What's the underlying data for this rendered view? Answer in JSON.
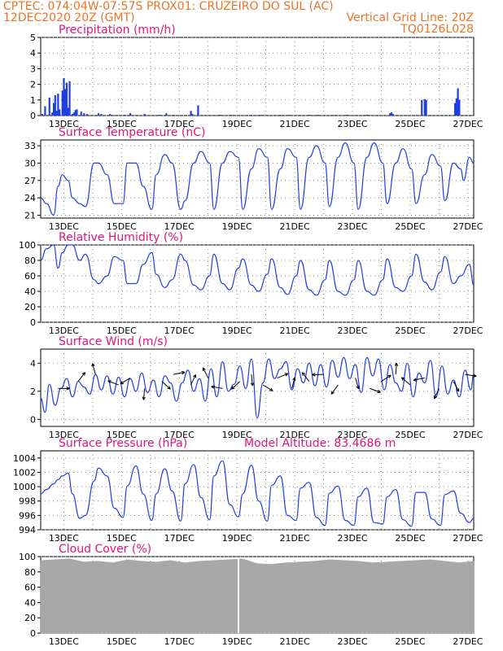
{
  "header": {
    "line1_left": "CPTEC:   074:04W-07:57S   PROX01: CRUZEIRO DO SUL (AC)",
    "line2_left": "12DEC2020 20Z (GMT)",
    "line2_right": "Vertical Grid Line: 20Z",
    "line3_right": "TQ0126L028"
  },
  "x_axis_labels": [
    "13DEC",
    "15DEC",
    "17DEC",
    "19DEC",
    "21DEC",
    "23DEC",
    "25DEC",
    "27DEC"
  ],
  "colors": {
    "header": "#e8742a",
    "title": "#e0147a",
    "series": "#1f3fe0",
    "cloud": "#a8a8a8",
    "arrow": "#000000"
  },
  "chart_data": [
    {
      "id": "precip",
      "type": "bar",
      "title": "Precipitation (mm/h)",
      "ylim": [
        0,
        5
      ],
      "yticks": [
        0,
        1,
        2,
        3,
        4,
        5
      ],
      "x": [
        0.05,
        0.15,
        0.3,
        0.4,
        0.45,
        0.5,
        0.55,
        0.6,
        0.65,
        0.75,
        0.8,
        0.85,
        0.9,
        0.95,
        1.0,
        1.1,
        1.15,
        1.2,
        1.25,
        1.4,
        1.5,
        1.6,
        2.0,
        2.1,
        2.4,
        2.9,
        3.1,
        3.6,
        4.1,
        4.35,
        4.6,
        5.2,
        5.25,
        5.45,
        6.2,
        6.6,
        7.3,
        7.6,
        8.3,
        8.6,
        9.3,
        9.6,
        10.2,
        10.6,
        11.3,
        12.1,
        12.15,
        12.2,
        13.2,
        13.3,
        13.35,
        14.35,
        14.4,
        14.45,
        14.5
      ],
      "values": [
        0.1,
        0.6,
        1.15,
        0.2,
        0.8,
        1.3,
        0.3,
        1.4,
        0.4,
        1.6,
        2.4,
        1.7,
        2.1,
        0.5,
        2.2,
        0.1,
        0.2,
        0.35,
        0.4,
        0.25,
        0.15,
        0.1,
        0.15,
        0.1,
        0.1,
        0.05,
        0.15,
        0.1,
        0.05,
        0.15,
        0.05,
        0.3,
        0.1,
        0.65,
        0.05,
        0.05,
        0.05,
        0.05,
        0.05,
        0.05,
        0.05,
        0.05,
        0.05,
        0.05,
        0.05,
        0.15,
        0.2,
        0.1,
        1.0,
        1.05,
        1.0,
        0.8,
        1.1,
        1.75,
        1.0
      ]
    },
    {
      "id": "temp",
      "type": "line",
      "title": "Surface Temperature (nC)",
      "ylim": [
        20.5,
        34
      ],
      "yticks": [
        21,
        24,
        27,
        30,
        33
      ],
      "x": [
        0,
        0.2,
        0.45,
        0.6,
        0.75,
        0.95,
        1.1,
        1.35,
        1.55,
        1.85,
        2.0,
        2.3,
        2.55,
        2.85,
        3.0,
        3.3,
        3.55,
        3.85,
        4.0,
        4.3,
        4.55,
        4.85,
        5.0,
        5.3,
        5.55,
        5.85,
        6.0,
        6.3,
        6.55,
        6.85,
        7.0,
        7.3,
        7.55,
        7.85,
        8.0,
        8.3,
        8.55,
        8.85,
        9.0,
        9.3,
        9.55,
        9.85,
        10.0,
        10.3,
        10.55,
        10.85,
        11.0,
        11.3,
        11.55,
        11.85,
        12.0,
        12.3,
        12.55,
        12.85,
        13.0,
        13.3,
        13.55,
        13.85,
        14.0,
        14.3,
        14.55,
        14.65,
        14.85,
        15.0
      ],
      "values": [
        24,
        23,
        21,
        26,
        28,
        27,
        24,
        23,
        22.5,
        30,
        30,
        28,
        23,
        23,
        30,
        30,
        26,
        22,
        28,
        31.5,
        30,
        22,
        23.5,
        30,
        32,
        30,
        22,
        30,
        32,
        31,
        22,
        29,
        32.5,
        31,
        22,
        29,
        32.5,
        31,
        22,
        31,
        33,
        30,
        22.5,
        31,
        33.5,
        30,
        22,
        31,
        33.5,
        30,
        23,
        30,
        32.5,
        29,
        23,
        28,
        31.5,
        29.5,
        23.5,
        30,
        29,
        27,
        31,
        30
      ]
    },
    {
      "id": "rh",
      "type": "line",
      "title": "Relative Humidity (%)",
      "ylim": [
        0,
        100
      ],
      "yticks": [
        0,
        20,
        40,
        60,
        80,
        100
      ],
      "x": [
        0,
        0.2,
        0.45,
        0.6,
        0.75,
        0.95,
        1.1,
        1.35,
        1.55,
        1.85,
        2.0,
        2.3,
        2.55,
        2.85,
        3.0,
        3.3,
        3.55,
        3.85,
        4.0,
        4.3,
        4.55,
        4.85,
        5.0,
        5.3,
        5.55,
        5.85,
        6.0,
        6.3,
        6.55,
        6.85,
        7.0,
        7.3,
        7.55,
        7.85,
        8.0,
        8.3,
        8.55,
        8.85,
        9.0,
        9.3,
        9.55,
        9.85,
        10.0,
        10.3,
        10.55,
        10.85,
        11.0,
        11.3,
        11.55,
        11.85,
        12.0,
        12.3,
        12.55,
        12.85,
        13.0,
        13.3,
        13.55,
        13.85,
        14.0,
        14.3,
        14.55,
        14.85,
        15.0
      ],
      "values": [
        80,
        95,
        100,
        70,
        90,
        100,
        100,
        80,
        88,
        55,
        50,
        60,
        85,
        80,
        50,
        50,
        75,
        90,
        62,
        45,
        55,
        88,
        80,
        48,
        42,
        60,
        88,
        50,
        42,
        70,
        82,
        48,
        40,
        62,
        82,
        45,
        36,
        60,
        80,
        42,
        35,
        55,
        80,
        40,
        35,
        55,
        80,
        40,
        35,
        55,
        82,
        45,
        40,
        60,
        88,
        52,
        42,
        65,
        85,
        50,
        60,
        75,
        48
      ]
    },
    {
      "id": "wind",
      "type": "line",
      "title": "Surface Wind (m/s)",
      "ylim": [
        -0.5,
        5
      ],
      "yticks": [
        0,
        2,
        4
      ],
      "x": [
        0,
        0.15,
        0.3,
        0.5,
        0.7,
        0.9,
        1.1,
        1.3,
        1.5,
        1.7,
        1.9,
        2.1,
        2.3,
        2.5,
        2.7,
        2.9,
        3.1,
        3.3,
        3.5,
        3.7,
        3.9,
        4.1,
        4.3,
        4.5,
        4.7,
        4.9,
        5.1,
        5.3,
        5.5,
        5.7,
        5.9,
        6.1,
        6.3,
        6.5,
        6.7,
        6.9,
        7.1,
        7.3,
        7.5,
        7.7,
        7.9,
        8.1,
        8.3,
        8.5,
        8.7,
        8.9,
        9.1,
        9.3,
        9.5,
        9.7,
        9.9,
        10.1,
        10.3,
        10.5,
        10.7,
        10.9,
        11.1,
        11.3,
        11.5,
        11.7,
        11.9,
        12.1,
        12.3,
        12.5,
        12.7,
        12.9,
        13.1,
        13.3,
        13.5,
        13.7,
        13.9,
        14.1,
        14.3,
        14.5,
        14.7,
        14.9,
        15.0
      ],
      "values": [
        1.5,
        0.5,
        2.5,
        1.0,
        2.2,
        2.9,
        1.6,
        2.7,
        2.3,
        1.8,
        3.2,
        2.1,
        3.1,
        1.8,
        3.0,
        1.6,
        2.9,
        2.0,
        3.3,
        1.9,
        2.8,
        1.6,
        3.1,
        2.6,
        1.3,
        2.6,
        3.5,
        2.0,
        2.9,
        1.3,
        3.6,
        1.6,
        4.1,
        2.0,
        2.5,
        3.8,
        2.2,
        4.3,
        0.1,
        2.6,
        4.3,
        2.9,
        3.6,
        4.1,
        2.1,
        3.6,
        2.6,
        4.0,
        2.4,
        3.9,
        2.3,
        4.2,
        3.0,
        4.4,
        2.9,
        3.9,
        1.9,
        4.4,
        3.1,
        4.3,
        2.1,
        3.9,
        2.6,
        2.0,
        4.0,
        1.6,
        3.3,
        2.6,
        4.2,
        1.6,
        3.8,
        1.8,
        2.8,
        1.6,
        3.5,
        2.1,
        3.2
      ]
    },
    {
      "id": "pres",
      "type": "line",
      "title": "Surface Pressure (hPa)",
      "annotation": "Model Altitude: 83.4686 m",
      "ylim": [
        994,
        1005
      ],
      "yticks": [
        994,
        996,
        998,
        1000,
        1002,
        1004
      ],
      "x": [
        0,
        0.2,
        0.45,
        0.6,
        0.75,
        0.95,
        1.1,
        1.35,
        1.55,
        1.85,
        2.0,
        2.3,
        2.55,
        2.85,
        3.0,
        3.3,
        3.55,
        3.85,
        4.0,
        4.3,
        4.55,
        4.85,
        5.0,
        5.3,
        5.55,
        5.85,
        6.0,
        6.3,
        6.55,
        6.85,
        7.0,
        7.3,
        7.55,
        7.85,
        8.0,
        8.3,
        8.55,
        8.85,
        9.0,
        9.3,
        9.55,
        9.85,
        10.0,
        10.3,
        10.55,
        10.85,
        11.0,
        11.3,
        11.55,
        11.85,
        12.0,
        12.3,
        12.55,
        12.85,
        13.0,
        13.3,
        13.55,
        13.85,
        14.0,
        14.3,
        14.55,
        14.85,
        15.0
      ],
      "values": [
        999,
        999.6,
        1000.4,
        1001,
        1001.5,
        1001.9,
        999,
        995.6,
        996,
        1000.8,
        1002.6,
        1001.5,
        997,
        995.7,
        1000.1,
        1002.9,
        999,
        995.3,
        999,
        1002.5,
        999.4,
        995.2,
        1000.4,
        1003.1,
        998.5,
        995.4,
        1001.5,
        1003.6,
        997.5,
        995.8,
        999,
        1003,
        998,
        995.2,
        1000.2,
        1001.5,
        996,
        995.3,
        999.8,
        1000.6,
        995.7,
        994.6,
        999.1,
        1000.1,
        995.3,
        994.6,
        998.6,
        999.8,
        995,
        994.8,
        998.6,
        999.6,
        995.4,
        994.5,
        999.2,
        999.2,
        995.5,
        994.6,
        998.9,
        999.4,
        996.3,
        995,
        995.6
      ]
    },
    {
      "id": "cloud",
      "type": "area",
      "title": "Cloud Cover (%)",
      "ylim": [
        0,
        100
      ],
      "yticks": [
        0,
        20,
        40,
        60,
        80,
        100
      ],
      "x": [
        0,
        0.5,
        1.0,
        1.5,
        2.0,
        2.5,
        3.0,
        3.5,
        4.0,
        4.5,
        5.0,
        5.5,
        6.0,
        6.5,
        7.0,
        7.5,
        8.0,
        8.5,
        9.0,
        9.5,
        10.0,
        10.5,
        11.0,
        11.5,
        12.0,
        12.5,
        13.0,
        13.5,
        14.0,
        14.5,
        15.0
      ],
      "values": [
        95,
        96,
        97,
        93,
        94,
        92,
        96,
        94,
        93,
        95,
        92,
        94,
        95,
        96,
        97,
        91,
        90,
        92,
        93,
        94,
        96,
        95,
        94,
        92,
        93,
        94,
        95,
        96,
        94,
        92,
        94
      ],
      "gap_at": 6.85
    }
  ]
}
